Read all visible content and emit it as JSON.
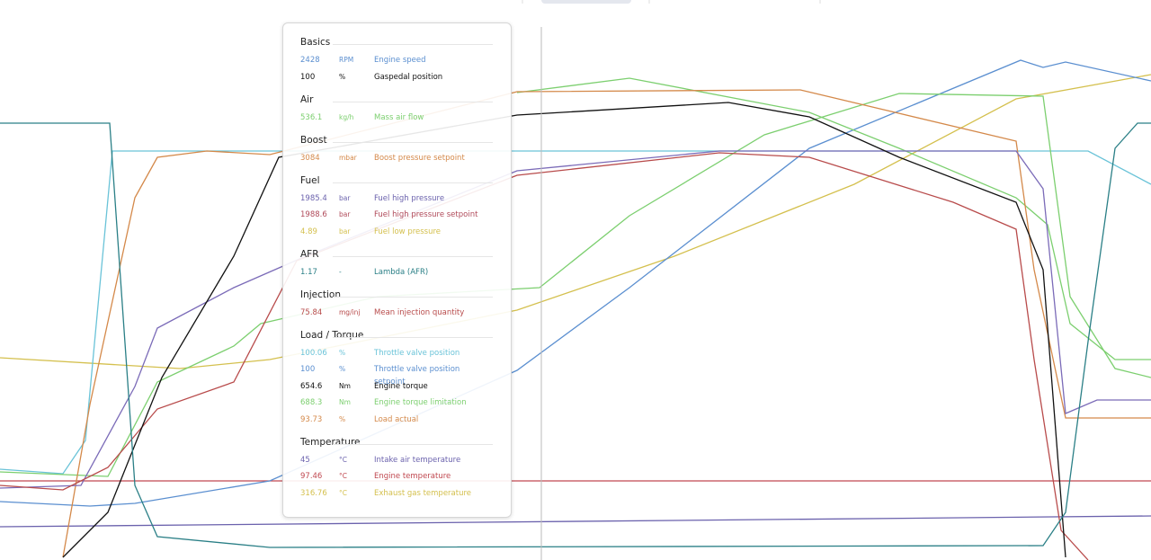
{
  "tooltip": {
    "groups": [
      {
        "title": "Basics",
        "rows": [
          {
            "value": 2428,
            "unit": "RPM",
            "label": "Engine speed",
            "color": "#5b8fd0"
          },
          {
            "value": 100,
            "unit": "%",
            "label": "Gaspedal position",
            "color": "#111111"
          }
        ]
      },
      {
        "title": "Air",
        "rows": [
          {
            "value": 536.1,
            "unit": "kg/h",
            "label": "Mass air flow",
            "color": "#7ccf6f"
          }
        ]
      },
      {
        "title": "Boost",
        "rows": [
          {
            "value": 3084,
            "unit": "mbar",
            "label": "Boost pressure setpoint",
            "color": "#d4894a"
          }
        ]
      },
      {
        "title": "Fuel",
        "rows": [
          {
            "value": 1985.4,
            "unit": "bar",
            "label": "Fuel high pressure",
            "color": "#6b62ad"
          },
          {
            "value": 1988.6,
            "unit": "bar",
            "label": "Fuel high pressure setpoint",
            "color": "#b04a5a"
          },
          {
            "value": 4.89,
            "unit": "bar",
            "label": "Fuel low pressure",
            "color": "#d4c04e"
          }
        ]
      },
      {
        "title": "AFR",
        "rows": [
          {
            "value": 1.17,
            "unit": "-",
            "label": "Lambda (AFR)",
            "color": "#2a7f86"
          }
        ]
      },
      {
        "title": "Injection",
        "rows": [
          {
            "value": 75.84,
            "unit": "mg/inj",
            "label": "Mean injection quantity",
            "color": "#b84b4b"
          }
        ]
      },
      {
        "title": "Load / Torque",
        "rows": [
          {
            "value": 100.06,
            "unit": "%",
            "label": "Throttle valve position",
            "color": "#6ac3d8"
          },
          {
            "value": 100,
            "unit": "%",
            "label": "Throttle valve position setpoint",
            "color": "#5b8fd0"
          },
          {
            "value": 654.6,
            "unit": "Nm",
            "label": "Engine torque",
            "color": "#111111"
          },
          {
            "value": 688.3,
            "unit": "Nm",
            "label": "Engine torque limitation",
            "color": "#7ccf6f"
          },
          {
            "value": 93.73,
            "unit": "%",
            "label": "Load actual",
            "color": "#d4894a"
          }
        ]
      },
      {
        "title": "Temperature",
        "rows": [
          {
            "value": 45,
            "unit": "°C",
            "label": "Intake air temperature",
            "color": "#6b62ad"
          },
          {
            "value": 97.46,
            "unit": "°C",
            "label": "Engine temperature",
            "color": "#c04850"
          },
          {
            "value": 316.76,
            "unit": "°C",
            "label": "Exhaust gas temperature",
            "color": "#d4c04e"
          }
        ]
      }
    ]
  }
}
